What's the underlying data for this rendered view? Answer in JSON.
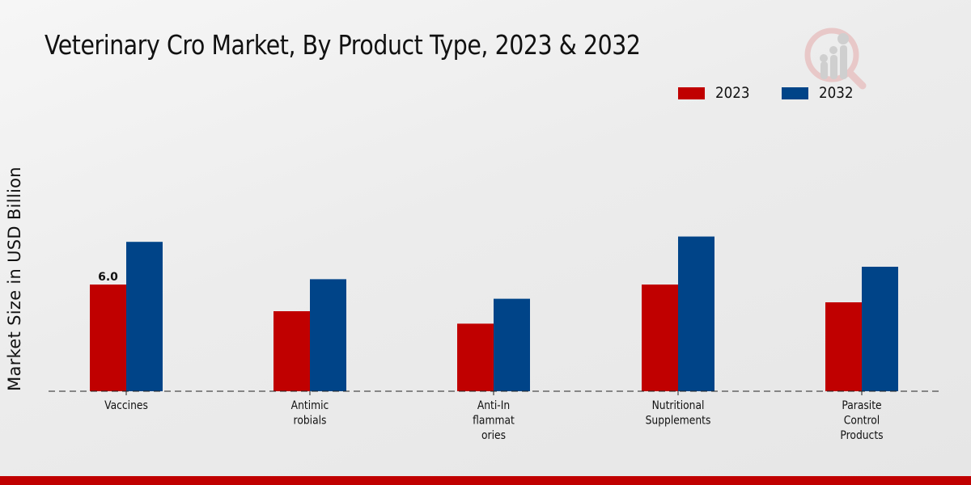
{
  "chart_data": {
    "type": "bar",
    "title": "Veterinary Cro Market, By Product Type, 2023 & 2032",
    "xlabel": "",
    "ylabel": "Market Size in USD Billion",
    "categories": [
      [
        "Vaccines"
      ],
      [
        "Antimic",
        "robials"
      ],
      [
        "Anti-In",
        "flammat",
        "ories"
      ],
      [
        "Nutritional",
        "Supplements"
      ],
      [
        "Parasite",
        "Control",
        "Products"
      ]
    ],
    "series": [
      {
        "name": "2023",
        "color": "#c00000",
        "values": [
          6.0,
          4.5,
          3.8,
          6.0,
          5.0
        ]
      },
      {
        "name": "2032",
        "color": "#004488",
        "values": [
          8.4,
          6.3,
          5.2,
          8.7,
          7.0
        ]
      }
    ],
    "data_labels": [
      {
        "series": 0,
        "index": 0,
        "text": "6.0"
      }
    ],
    "ylim": [
      0,
      16
    ],
    "grid": false,
    "legend_position": "top-right"
  },
  "footer_color": "#c00000",
  "logo": "market-research-magnifier-logo"
}
